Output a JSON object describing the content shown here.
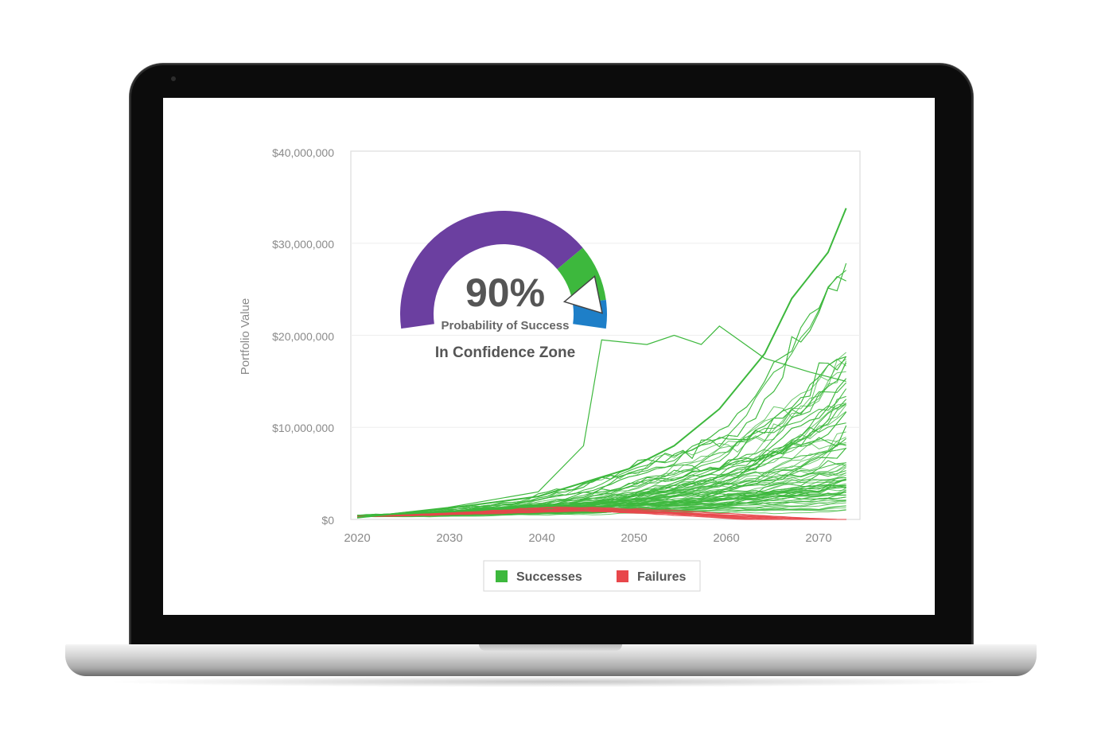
{
  "chart_data": {
    "type": "line",
    "title": "",
    "xlabel": "",
    "ylabel": "Portfolio Value",
    "x_range": [
      2020,
      2075
    ],
    "ylim": [
      0,
      40000000
    ],
    "x_ticks": [
      "2020",
      "2030",
      "2040",
      "2050",
      "2060",
      "2070"
    ],
    "y_ticks": [
      "$0",
      "$10,000,000",
      "$20,000,000",
      "$30,000,000",
      "$40,000,000"
    ],
    "grid": true,
    "legend_position": "bottom-center",
    "series": [
      {
        "name": "Successes",
        "color": "#3db83d",
        "count": 120,
        "approx_final_range": [
          0,
          34000000
        ]
      },
      {
        "name": "Failures",
        "color": "#e8474b",
        "count": 14,
        "approx_peak": 1200000,
        "approx_final": 0
      }
    ],
    "notable_paths": [
      {
        "label_ref": "Successes",
        "x": [
          2020,
          2030,
          2040,
          2050,
          2055,
          2060,
          2065,
          2068,
          2070,
          2072,
          2074
        ],
        "y": [
          200000,
          1200000,
          2500000,
          5500000,
          8000000,
          12000000,
          18000000,
          24000000,
          26500000,
          29000000,
          33800000
        ]
      },
      {
        "label_ref": "Successes",
        "x": [
          2020,
          2030,
          2040,
          2045,
          2047,
          2052,
          2055,
          2058,
          2060,
          2065,
          2070,
          2074
        ],
        "y": [
          200000,
          1300000,
          3000000,
          8000000,
          19500000,
          19000000,
          20000000,
          19000000,
          21000000,
          17500000,
          16000000,
          15000000
        ]
      }
    ]
  },
  "gauge": {
    "value": "90%",
    "value_numeric": 90,
    "label": "Probability of Success",
    "zone": "In Confidence Zone",
    "segments": [
      {
        "name": "low",
        "color": "#6b3fa0"
      },
      {
        "name": "confidence",
        "color": "#3db83d"
      },
      {
        "name": "high",
        "color": "#1e7fc8"
      }
    ],
    "pointer_color": "#ffffff"
  },
  "legend": {
    "items": [
      {
        "label": "Successes",
        "color": "#3db83d"
      },
      {
        "label": "Failures",
        "color": "#e8474b"
      }
    ]
  }
}
